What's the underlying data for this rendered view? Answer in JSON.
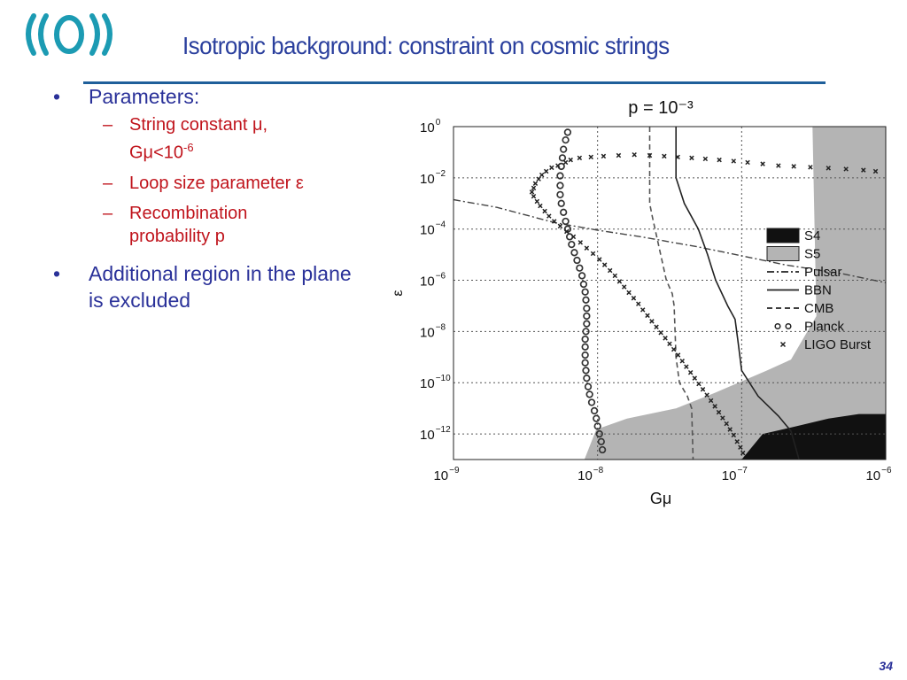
{
  "slide": {
    "title": "Isotropic background: constraint on cosmic strings",
    "page_number": "34",
    "bullets": [
      {
        "text": "Parameters:",
        "sub": [
          {
            "lines": [
              "String constant μ,",
              "Gμ<10",
              "-6"
            ]
          },
          {
            "lines": [
              "Loop size parameter ε"
            ]
          },
          {
            "lines": [
              "Recombination",
              "probability p"
            ]
          }
        ]
      },
      {
        "text": "Additional region in the plane is excluded"
      }
    ],
    "bullet_glyph": "•",
    "dash_glyph": "–"
  },
  "colors": {
    "title": "#2a3f9d",
    "bullet_text": "#2a3199",
    "sub_text": "#c0141c",
    "rule": "#1f5f9a",
    "logo": "#1c9bb3"
  },
  "chart_data": {
    "type": "scatter",
    "title": "p = 10⁻³",
    "xlabel": "Gμ",
    "ylabel": "ε",
    "xscale": "log",
    "yscale": "log",
    "xlim": [
      1e-09,
      1e-06
    ],
    "ylim": [
      1e-13,
      1
    ],
    "grid": true,
    "legend_position": "right",
    "x_ticks": [
      {
        "base": "10",
        "exp": "−9"
      },
      {
        "base": "10",
        "exp": "−8"
      },
      {
        "base": "10",
        "exp": "−7"
      },
      {
        "base": "10",
        "exp": "−6"
      }
    ],
    "y_ticks": [
      {
        "base": "10",
        "exp": "0"
      },
      {
        "base": "10",
        "exp": "−2"
      },
      {
        "base": "10",
        "exp": "−4"
      },
      {
        "base": "10",
        "exp": "−6"
      },
      {
        "base": "10",
        "exp": "−8"
      },
      {
        "base": "10",
        "exp": "−10"
      },
      {
        "base": "10",
        "exp": "−12"
      }
    ],
    "regions": [
      {
        "name": "S5",
        "color": "#b4b4b4",
        "points": [
          [
            8.1e-09,
            1e-13
          ],
          [
            9.8e-09,
            1.5e-12
          ],
          [
            1.6e-08,
            4e-12
          ],
          [
            3.5e-08,
            1e-11
          ],
          [
            6.5e-08,
            4e-11
          ],
          [
            1.5e-07,
            3e-10
          ],
          [
            2.2e-07,
            8e-10
          ],
          [
            3.3e-07,
            4e-08
          ],
          [
            3.1e-07,
            1
          ],
          [
            1e-06,
            1
          ],
          [
            1e-06,
            1e-13
          ]
        ]
      },
      {
        "name": "S4",
        "color": "#111111",
        "points": [
          [
            1e-07,
            1e-13
          ],
          [
            1.4e-07,
            1e-12
          ],
          [
            2.4e-07,
            2e-12
          ],
          [
            4e-07,
            4e-12
          ],
          [
            6.5e-07,
            6e-12
          ],
          [
            1e-06,
            6e-12
          ],
          [
            1e-06,
            1e-13
          ]
        ]
      }
    ],
    "series": [
      {
        "name": "Pulsar",
        "style": "dashdot",
        "points": [
          [
            1e-09,
            0.0014
          ],
          [
            2e-09,
            0.0007
          ],
          [
            5e-09,
            0.00018
          ],
          [
            1e-08,
            9e-05
          ],
          [
            2e-08,
            5e-05
          ],
          [
            5e-08,
            2e-05
          ],
          [
            1e-07,
            9e-06
          ],
          [
            2e-07,
            4e-06
          ],
          [
            5e-07,
            1.8e-06
          ],
          [
            1e-06,
            8e-07
          ]
        ]
      },
      {
        "name": "BBN",
        "style": "solid",
        "points": [
          [
            3.5e-08,
            1
          ],
          [
            3.5e-08,
            0.01
          ],
          [
            4e-08,
            0.001
          ],
          [
            5e-08,
            0.0001
          ],
          [
            5.8e-08,
            1e-05
          ],
          [
            6.2e-08,
            3e-06
          ],
          [
            6.6e-08,
            1e-06
          ],
          [
            8e-08,
            1e-07
          ],
          [
            9e-08,
            3e-08
          ],
          [
            9.5e-08,
            3e-09
          ],
          [
            1e-07,
            3e-10
          ],
          [
            1.3e-07,
            3e-11
          ],
          [
            1.8e-07,
            5e-12
          ],
          [
            2.2e-07,
            1.3e-12
          ],
          [
            2.5e-07,
            1e-13
          ]
        ]
      },
      {
        "name": "CMB",
        "style": "dashed",
        "points": [
          [
            2.3e-08,
            1
          ],
          [
            2.3e-08,
            0.001
          ],
          [
            2.4e-08,
            0.0003
          ],
          [
            3e-08,
            1e-06
          ],
          [
            3.3e-08,
            3e-07
          ],
          [
            3.4e-08,
            1e-07
          ],
          [
            3.5e-08,
            1e-09
          ],
          [
            3.7e-08,
            1e-10
          ],
          [
            4.2e-08,
            3e-11
          ],
          [
            4.5e-08,
            1e-11
          ],
          [
            4.6e-08,
            1e-13
          ]
        ]
      },
      {
        "name": "Planck",
        "style": "circles",
        "points": [
          [
            6.2e-09,
            0.6
          ],
          [
            6e-09,
            0.3
          ],
          [
            5.8e-09,
            0.13
          ],
          [
            5.7e-09,
            0.06
          ],
          [
            5.6e-09,
            0.028
          ],
          [
            5.5e-09,
            0.012
          ],
          [
            5.5e-09,
            0.005
          ],
          [
            5.5e-09,
            0.0022
          ],
          [
            5.6e-09,
            0.001
          ],
          [
            5.8e-09,
            0.00045
          ],
          [
            6e-09,
            0.0002
          ],
          [
            6.2e-09,
            0.0001
          ],
          [
            6.4e-09,
            5e-05
          ],
          [
            6.6e-09,
            2.5e-05
          ],
          [
            6.9e-09,
            1.2e-05
          ],
          [
            7.2e-09,
            6e-06
          ],
          [
            7.5e-09,
            3e-06
          ],
          [
            7.8e-09,
            1.5e-06
          ],
          [
            8e-09,
            7e-07
          ],
          [
            8.2e-09,
            3.5e-07
          ],
          [
            8.3e-09,
            1.7e-07
          ],
          [
            8.4e-09,
            8e-08
          ],
          [
            8.4e-09,
            4e-08
          ],
          [
            8.4e-09,
            2e-08
          ],
          [
            8.3e-09,
            1e-08
          ],
          [
            8.2e-09,
            5e-09
          ],
          [
            8.2e-09,
            2.5e-09
          ],
          [
            8.2e-09,
            1.2e-09
          ],
          [
            8.2e-09,
            6e-10
          ],
          [
            8.3e-09,
            3e-10
          ],
          [
            8.4e-09,
            1.5e-10
          ],
          [
            8.6e-09,
            7e-11
          ],
          [
            8.8e-09,
            3.5e-11
          ],
          [
            9.1e-09,
            1.7e-11
          ],
          [
            9.5e-09,
            8e-12
          ],
          [
            9.8e-09,
            4e-12
          ],
          [
            1e-08,
            2e-12
          ],
          [
            1.03e-08,
            1e-12
          ],
          [
            1.06e-08,
            5e-13
          ],
          [
            1.08e-08,
            2.4e-13
          ]
        ]
      },
      {
        "name": "LIGO Burst",
        "style": "crosses",
        "points": [
          [
            6.5e-09,
            0.05
          ],
          [
            6e-09,
            0.04
          ],
          [
            5.3e-09,
            0.03
          ],
          [
            4.8e-09,
            0.025
          ],
          [
            4.4e-09,
            0.018
          ],
          [
            4.1e-09,
            0.013
          ],
          [
            3.9e-09,
            0.009
          ],
          [
            3.7e-09,
            0.006
          ],
          [
            3.6e-09,
            0.004
          ],
          [
            3.5e-09,
            0.0028
          ],
          [
            3.6e-09,
            0.0019
          ],
          [
            3.8e-09,
            0.0012
          ],
          [
            4e-09,
            0.0008
          ],
          [
            4.3e-09,
            0.0005
          ],
          [
            4.6e-09,
            0.00032
          ],
          [
            5e-09,
            0.0002
          ],
          [
            5.5e-09,
            0.00013
          ],
          [
            6.1e-09,
            8e-05
          ],
          [
            6.8e-09,
            5e-05
          ],
          [
            7.6e-09,
            3e-05
          ],
          [
            8.4e-09,
            1.8e-05
          ],
          [
            9.3e-09,
            1.1e-05
          ],
          [
            1.03e-08,
            6.5e-06
          ],
          [
            1.12e-08,
            4e-06
          ],
          [
            1.22e-08,
            2.4e-06
          ],
          [
            1.32e-08,
            1.5e-06
          ],
          [
            1.42e-08,
            9e-07
          ],
          [
            1.53e-08,
            5.5e-07
          ],
          [
            1.65e-08,
            3.3e-07
          ],
          [
            1.78e-08,
            2e-07
          ],
          [
            1.92e-08,
            1.2e-07
          ],
          [
            2.06e-08,
            7e-08
          ],
          [
            2.22e-08,
            4.2e-08
          ],
          [
            2.38e-08,
            2.5e-08
          ],
          [
            2.56e-08,
            1.5e-08
          ],
          [
            2.75e-08,
            9e-09
          ],
          [
            2.95e-08,
            5.5e-09
          ],
          [
            3.16e-08,
            3.3e-09
          ],
          [
            3.38e-08,
            2e-09
          ],
          [
            3.62e-08,
            1.2e-09
          ],
          [
            3.87e-08,
            7e-10
          ],
          [
            4.13e-08,
            4.2e-10
          ],
          [
            4.42e-08,
            2.5e-10
          ],
          [
            4.72e-08,
            1.5e-10
          ],
          [
            5.04e-08,
            9e-11
          ],
          [
            5.38e-08,
            5.5e-11
          ],
          [
            5.74e-08,
            3.3e-11
          ],
          [
            6.12e-08,
            2e-11
          ],
          [
            6.52e-08,
            1.2e-11
          ],
          [
            6.94e-08,
            7e-12
          ],
          [
            7.38e-08,
            4.2e-12
          ],
          [
            7.85e-08,
            2.5e-12
          ],
          [
            8.3e-08,
            1.5e-12
          ],
          [
            8.8e-08,
            9e-13
          ],
          [
            9.3e-08,
            5e-13
          ],
          [
            9.8e-08,
            3e-13
          ],
          [
            1.02e-07,
            1.8e-13
          ],
          [
            7.5e-09,
            0.06
          ],
          [
            9e-09,
            0.065
          ],
          [
            1.1e-08,
            0.07
          ],
          [
            1.4e-08,
            0.075
          ],
          [
            1.8e-08,
            0.08
          ],
          [
            2.3e-08,
            0.075
          ],
          [
            2.9e-08,
            0.07
          ],
          [
            3.6e-08,
            0.065
          ],
          [
            4.5e-08,
            0.06
          ],
          [
            5.6e-08,
            0.055
          ],
          [
            7e-08,
            0.05
          ],
          [
            8.8e-08,
            0.045
          ],
          [
            1.1e-07,
            0.04
          ],
          [
            1.4e-07,
            0.035
          ],
          [
            1.8e-07,
            0.03
          ],
          [
            2.3e-07,
            0.028
          ],
          [
            3e-07,
            0.026
          ],
          [
            4e-07,
            0.024
          ],
          [
            5.3e-07,
            0.022
          ],
          [
            7e-07,
            0.02
          ],
          [
            8.5e-07,
            0.018
          ]
        ]
      }
    ]
  }
}
